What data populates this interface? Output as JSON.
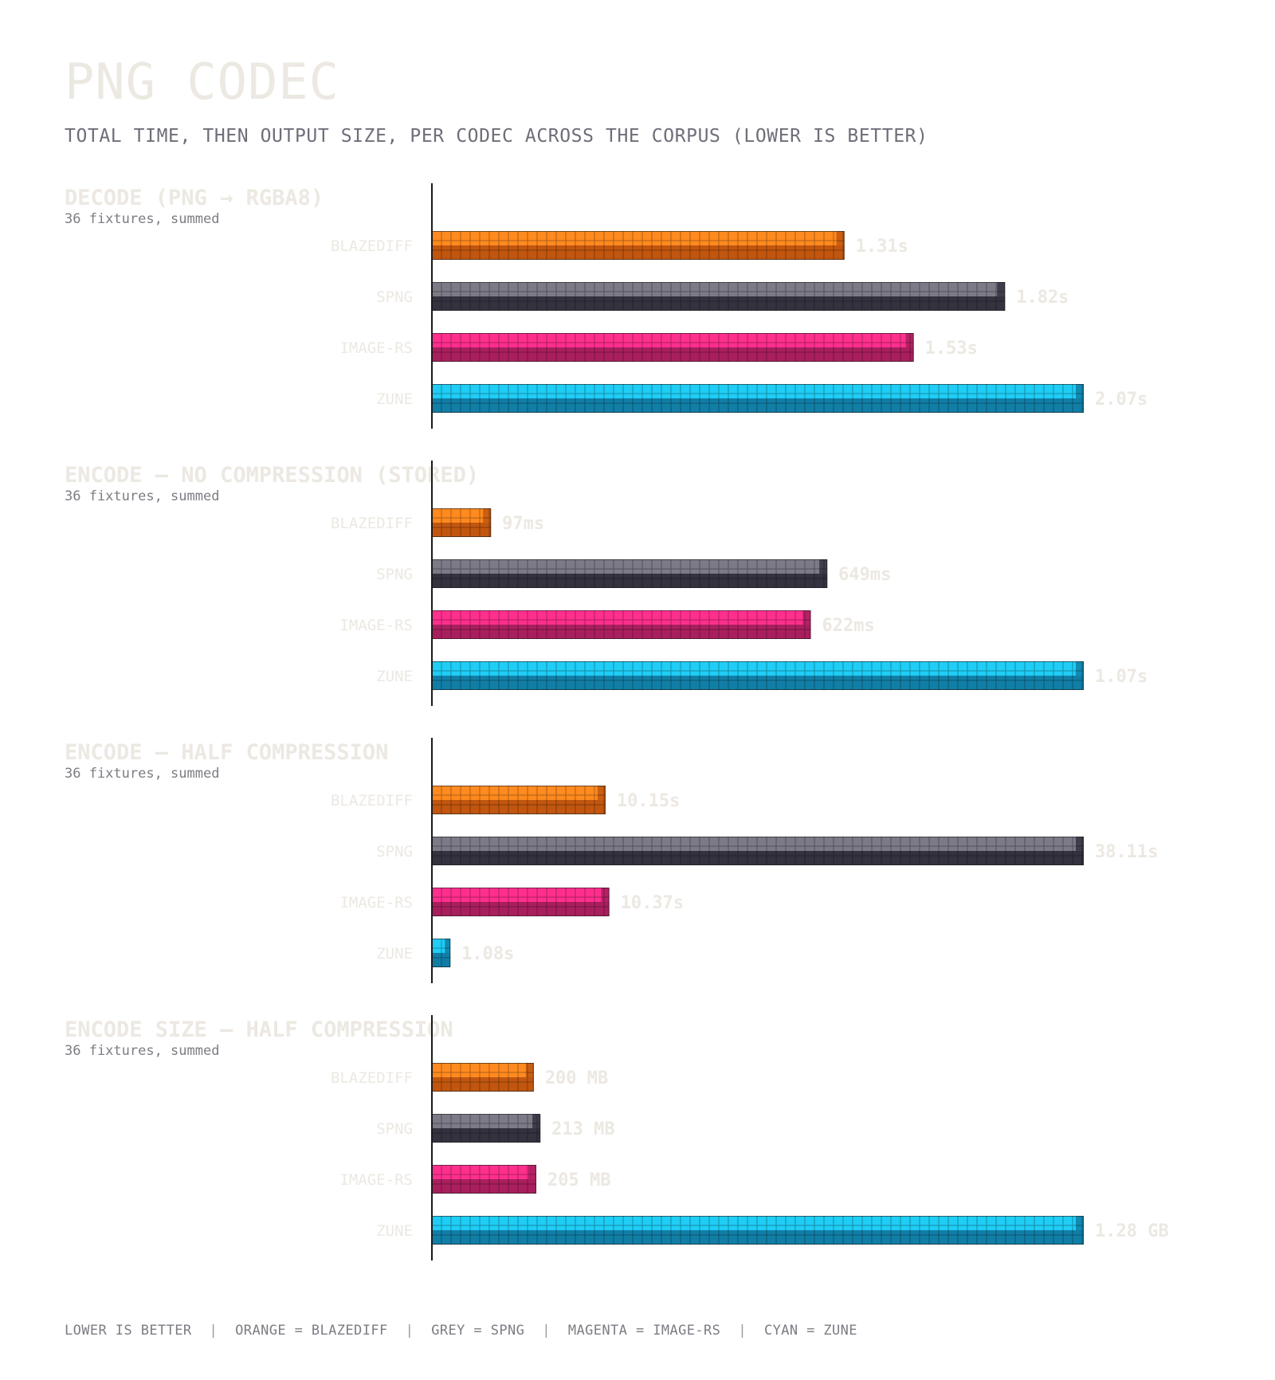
{
  "header": {
    "title": "PNG CODEC",
    "subtitle": "TOTAL TIME, THEN OUTPUT SIZE, PER CODEC ACROSS THE CORPUS (LOWER IS BETTER)"
  },
  "colors": {
    "blazediff": {
      "light": "#ff8a1f",
      "dark": "#c2560f"
    },
    "spng": {
      "light": "#7b7a86",
      "dark": "#34323f"
    },
    "image-rs": {
      "light": "#ff2f8e",
      "dark": "#a91f5e"
    },
    "zune": {
      "light": "#1fcdf5",
      "dark": "#117ea6"
    },
    "label": "#ece8e2",
    "axis": "#1a1a1a"
  },
  "chart_data": [
    {
      "type": "bar",
      "orientation": "horizontal",
      "title": "DECODE (PNG → RGBA8)",
      "note": "36 fixtures, summed",
      "categories": [
        "BLAZEDIFF",
        "SPNG",
        "IMAGE-RS",
        "ZUNE"
      ],
      "values": [
        1.31,
        1.82,
        1.53,
        2.07
      ],
      "unit": "s",
      "value_labels": [
        "1.31s",
        "1.82s",
        "1.53s",
        "2.07s"
      ]
    },
    {
      "type": "bar",
      "orientation": "horizontal",
      "title": "ENCODE — NO COMPRESSION (STORED)",
      "note": "36 fixtures, summed",
      "categories": [
        "BLAZEDIFF",
        "SPNG",
        "IMAGE-RS",
        "ZUNE"
      ],
      "values": [
        97,
        649,
        622,
        1070
      ],
      "unit": "ms",
      "value_labels": [
        "97ms",
        "649ms",
        "622ms",
        "1.07s"
      ]
    },
    {
      "type": "bar",
      "orientation": "horizontal",
      "title": "ENCODE — HALF COMPRESSION",
      "note": "36 fixtures, summed",
      "categories": [
        "BLAZEDIFF",
        "SPNG",
        "IMAGE-RS",
        "ZUNE"
      ],
      "values": [
        10.15,
        38.11,
        10.37,
        1.08
      ],
      "unit": "s",
      "value_labels": [
        "10.15s",
        "38.11s",
        "10.37s",
        "1.08s"
      ]
    },
    {
      "type": "bar",
      "orientation": "horizontal",
      "title": "ENCODE SIZE — HALF COMPRESSION",
      "note": "36 fixtures, summed",
      "categories": [
        "BLAZEDIFF",
        "SPNG",
        "IMAGE-RS",
        "ZUNE"
      ],
      "values": [
        200,
        213,
        205,
        1280
      ],
      "unit": "MB",
      "value_labels": [
        "200 MB",
        "213 MB",
        "205 MB",
        "1.28 GB"
      ]
    }
  ],
  "legend": {
    "items": [
      "LOWER IS BETTER",
      "ORANGE = BLAZEDIFF",
      "GREY = SPNG",
      "MAGENTA = IMAGE-RS",
      "CYAN = ZUNE"
    ]
  }
}
